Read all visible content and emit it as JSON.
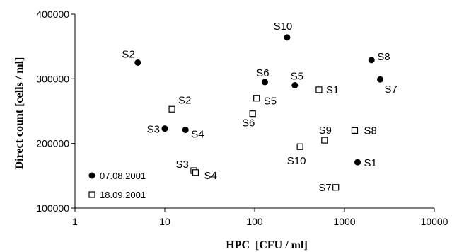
{
  "chart_data": {
    "type": "scatter",
    "title": "",
    "xlabel": "HPC  [CFU / ml]",
    "ylabel": "Direct count [cells / ml]",
    "x_scale": "log",
    "xlim": [
      1,
      10000
    ],
    "ylim": [
      100000,
      400000
    ],
    "x_ticks": [
      1,
      10,
      100,
      1000,
      10000
    ],
    "x_tick_labels": [
      "1",
      "10",
      "100",
      "1000",
      "10000"
    ],
    "y_ticks": [
      100000,
      200000,
      300000,
      400000
    ],
    "y_tick_labels": [
      "100000",
      "200000",
      "300000",
      "400000"
    ],
    "grid": false,
    "legend_position": "bottom-left",
    "series": [
      {
        "name": "07.08.2001",
        "marker": "filled-circle",
        "color": "#000000",
        "points": [
          {
            "label": "S1",
            "x": 1400,
            "y": 171000
          },
          {
            "label": "S2",
            "x": 5,
            "y": 325000
          },
          {
            "label": "S3",
            "x": 10,
            "y": 223000
          },
          {
            "label": "S4",
            "x": 17,
            "y": 221000
          },
          {
            "label": "S5",
            "x": 280,
            "y": 290000
          },
          {
            "label": "S6",
            "x": 130,
            "y": 295000
          },
          {
            "label": "S7",
            "x": 2500,
            "y": 299000
          },
          {
            "label": "S8",
            "x": 2000,
            "y": 329000
          },
          {
            "label": "S10",
            "x": 230,
            "y": 364000
          }
        ]
      },
      {
        "name": "18.09.2001",
        "marker": "open-square",
        "color": "#000000",
        "points": [
          {
            "label": "S1",
            "x": 520,
            "y": 283000
          },
          {
            "label": "S2",
            "x": 12,
            "y": 253000
          },
          {
            "label": "S3",
            "x": 21,
            "y": 158000
          },
          {
            "label": "S4",
            "x": 22,
            "y": 155000
          },
          {
            "label": "S5",
            "x": 105,
            "y": 270000
          },
          {
            "label": "S6",
            "x": 95,
            "y": 246000
          },
          {
            "label": "S7",
            "x": 800,
            "y": 132000
          },
          {
            "label": "S8",
            "x": 1300,
            "y": 220000
          },
          {
            "label": "S9",
            "x": 600,
            "y": 205000
          },
          {
            "label": "S10",
            "x": 320,
            "y": 195000
          }
        ]
      }
    ]
  }
}
